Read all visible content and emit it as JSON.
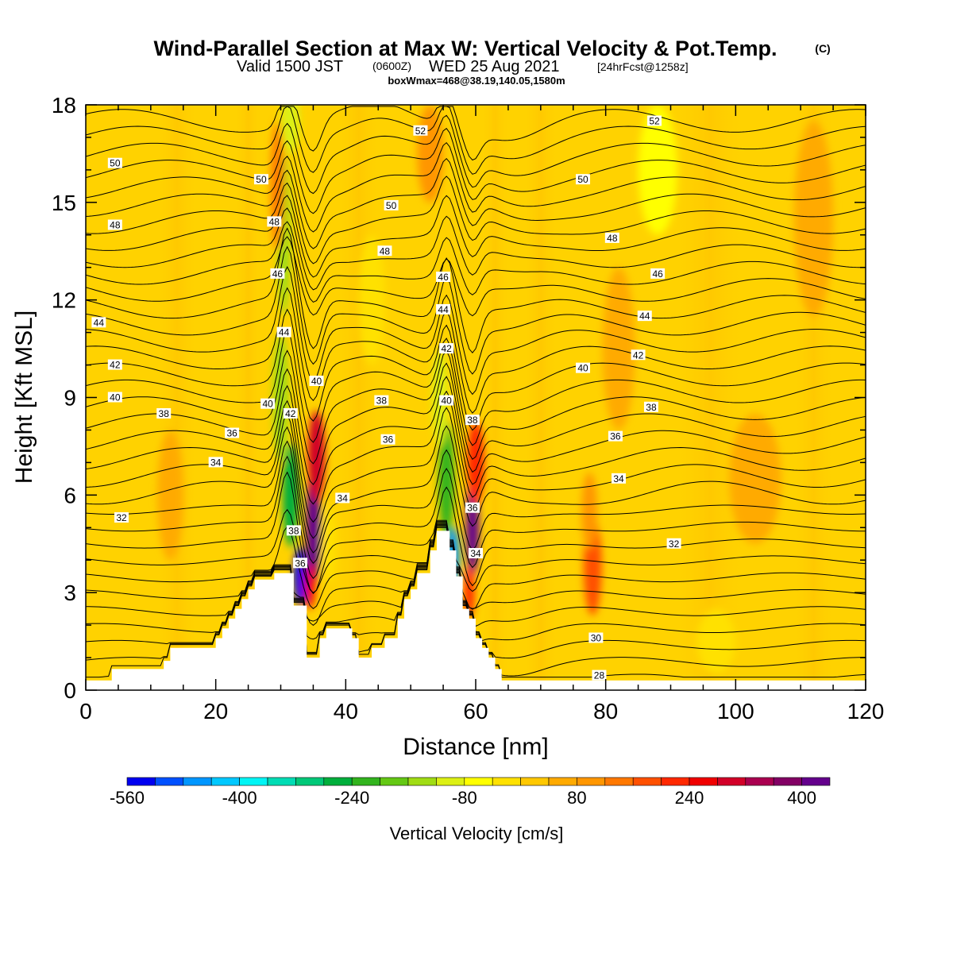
{
  "title": {
    "main": "Wind-Parallel Section at Max W: Vertical Velocity & Pot.Temp.",
    "copyright": "(C)",
    "valid_prefix": "Valid 1500 JST",
    "valid_zulu": "(0600Z)",
    "valid_suffix": "WED 25 Aug 2021",
    "forecast": "[24hrFcst@1258z]",
    "box": "boxWmax=468@38.19,140.05,1580m"
  },
  "colorbar": {
    "label": "Vertical Velocity [cm/s]",
    "tick_labels": [
      "-560",
      "-400",
      "-240",
      "-80",
      "80",
      "240",
      "400"
    ],
    "colors": [
      "#0000f0",
      "#0050ff",
      "#0096ff",
      "#00c8ff",
      "#00f5f5",
      "#00dcb4",
      "#00c878",
      "#00af3c",
      "#32b41e",
      "#64c814",
      "#a0dc14",
      "#dcf014",
      "#ffff00",
      "#ffe100",
      "#ffc800",
      "#ffaa00",
      "#ff9600",
      "#ff7800",
      "#ff5000",
      "#ff2800",
      "#f00000",
      "#d20028",
      "#aa0050",
      "#820064",
      "#64008c"
    ]
  },
  "chart_data": {
    "type": "heatmap",
    "xlabel": "Distance [nm]",
    "ylabel": "Height [Kft MSL]",
    "xlim": [
      0,
      120
    ],
    "ylim": [
      0,
      18
    ],
    "xticks": [
      0,
      20,
      40,
      60,
      80,
      100,
      120
    ],
    "yticks": [
      0,
      3,
      6,
      9,
      12,
      15,
      18
    ],
    "terrain_kft": [
      [
        0,
        0.3
      ],
      [
        4,
        0.3
      ],
      [
        4,
        0.65
      ],
      [
        12,
        0.65
      ],
      [
        12,
        0.9
      ],
      [
        13,
        0.9
      ],
      [
        13,
        1.3
      ],
      [
        20,
        1.3
      ],
      [
        20,
        1.6
      ],
      [
        21,
        1.6
      ],
      [
        21,
        1.9
      ],
      [
        22,
        1.9
      ],
      [
        22,
        2.2
      ],
      [
        23,
        2.2
      ],
      [
        23,
        2.5
      ],
      [
        24,
        2.5
      ],
      [
        24,
        2.8
      ],
      [
        25,
        2.8
      ],
      [
        25,
        3.1
      ],
      [
        26,
        3.1
      ],
      [
        26,
        3.4
      ],
      [
        29,
        3.4
      ],
      [
        29,
        3.6
      ],
      [
        32,
        3.6
      ],
      [
        32,
        2.6
      ],
      [
        34,
        2.6
      ],
      [
        34,
        1.0
      ],
      [
        36,
        1.0
      ],
      [
        36,
        1.6
      ],
      [
        37,
        1.6
      ],
      [
        37,
        1.9
      ],
      [
        41,
        1.9
      ],
      [
        41,
        1.6
      ],
      [
        42,
        1.6
      ],
      [
        42,
        1.0
      ],
      [
        44,
        1.0
      ],
      [
        44,
        1.3
      ],
      [
        46,
        1.3
      ],
      [
        46,
        1.6
      ],
      [
        48,
        1.6
      ],
      [
        48,
        2.2
      ],
      [
        49,
        2.2
      ],
      [
        49,
        2.8
      ],
      [
        50,
        2.8
      ],
      [
        50,
        3.1
      ],
      [
        51,
        3.1
      ],
      [
        51,
        3.6
      ],
      [
        53,
        3.6
      ],
      [
        53,
        4.3
      ],
      [
        54,
        4.3
      ],
      [
        54,
        4.9
      ],
      [
        56,
        4.9
      ],
      [
        56,
        4.3
      ],
      [
        57,
        4.3
      ],
      [
        57,
        3.5
      ],
      [
        58,
        3.5
      ],
      [
        58,
        2.5
      ],
      [
        59,
        2.5
      ],
      [
        59,
        2.2
      ],
      [
        60,
        2.2
      ],
      [
        60,
        1.6
      ],
      [
        61,
        1.6
      ],
      [
        61,
        1.3
      ],
      [
        62,
        1.3
      ],
      [
        62,
        1.0
      ],
      [
        63,
        1.0
      ],
      [
        63,
        0.65
      ],
      [
        64,
        0.65
      ],
      [
        64,
        0.3
      ],
      [
        120,
        0.3
      ]
    ],
    "vertical_velocity_cells": [
      {
        "x": 33,
        "y": 3.5,
        "sx": 1.0,
        "sy": 0.9,
        "w": -560
      },
      {
        "x": 31.5,
        "y": 6.0,
        "sx": 1.2,
        "sy": 1.6,
        "w": -280
      },
      {
        "x": 30,
        "y": 9.0,
        "sx": 1.2,
        "sy": 2.0,
        "w": -160
      },
      {
        "x": 30.5,
        "y": 14.0,
        "sx": 1.0,
        "sy": 2.5,
        "w": -160
      },
      {
        "x": 31.5,
        "y": 17.5,
        "sx": 1.4,
        "sy": 1.0,
        "w": -120
      },
      {
        "x": 35,
        "y": 5.0,
        "sx": 1.1,
        "sy": 1.8,
        "w": 400
      },
      {
        "x": 35.5,
        "y": 7.2,
        "sx": 1.3,
        "sy": 1.4,
        "w": 280
      },
      {
        "x": 34.5,
        "y": 3.2,
        "sx": 0.8,
        "sy": 0.7,
        "w": 240
      },
      {
        "x": 29.5,
        "y": 15.5,
        "sx": 1.0,
        "sy": 2.0,
        "w": 120
      },
      {
        "x": 37.5,
        "y": 4.5,
        "sx": 1.0,
        "sy": 1.2,
        "w": -40
      },
      {
        "x": 56.5,
        "y": 4.0,
        "sx": 1.0,
        "sy": 1.0,
        "w": -480
      },
      {
        "x": 55.5,
        "y": 6.5,
        "sx": 1.2,
        "sy": 1.8,
        "w": -240
      },
      {
        "x": 54.5,
        "y": 9.0,
        "sx": 1.2,
        "sy": 1.5,
        "w": -120
      },
      {
        "x": 59.5,
        "y": 5.0,
        "sx": 1.0,
        "sy": 1.5,
        "w": 400
      },
      {
        "x": 60,
        "y": 7.0,
        "sx": 1.3,
        "sy": 1.3,
        "w": 200
      },
      {
        "x": 59,
        "y": 3.0,
        "sx": 0.8,
        "sy": 0.8,
        "w": 200
      },
      {
        "x": 78,
        "y": 3.8,
        "sx": 1.4,
        "sy": 1.5,
        "w": 160
      },
      {
        "x": 77.5,
        "y": 5.5,
        "sx": 1.2,
        "sy": 1.2,
        "w": 100
      },
      {
        "x": 13,
        "y": 6.0,
        "sx": 2.0,
        "sy": 2.0,
        "w": 60
      },
      {
        "x": 53,
        "y": 16.5,
        "sx": 2.0,
        "sy": 1.5,
        "w": 80
      },
      {
        "x": 82,
        "y": 10.5,
        "sx": 2.5,
        "sy": 2.5,
        "w": 50
      },
      {
        "x": 112,
        "y": 14.5,
        "sx": 3.0,
        "sy": 3.0,
        "w": 50
      },
      {
        "x": 103,
        "y": 6.5,
        "sx": 4.0,
        "sy": 2.0,
        "w": 60
      },
      {
        "x": 44,
        "y": 12.0,
        "sx": 2.0,
        "sy": 2.0,
        "w": -40
      },
      {
        "x": 88,
        "y": 16.0,
        "sx": 3.0,
        "sy": 2.0,
        "w": -50
      },
      {
        "x": 97,
        "y": 1.5,
        "sx": 3.0,
        "sy": 1.0,
        "w": -40
      }
    ],
    "isentrope_labels": [
      {
        "text": "50",
        "x": 4.5,
        "y": 16.2
      },
      {
        "text": "48",
        "x": 4.5,
        "y": 14.3
      },
      {
        "text": "44",
        "x": 2.0,
        "y": 11.3
      },
      {
        "text": "42",
        "x": 4.5,
        "y": 10.0
      },
      {
        "text": "40",
        "x": 4.5,
        "y": 9.0
      },
      {
        "text": "38",
        "x": 12.0,
        "y": 8.5
      },
      {
        "text": "36",
        "x": 22.5,
        "y": 7.9
      },
      {
        "text": "34",
        "x": 20.0,
        "y": 7.0
      },
      {
        "text": "32",
        "x": 5.5,
        "y": 5.3
      },
      {
        "text": "50",
        "x": 27.0,
        "y": 15.7
      },
      {
        "text": "48",
        "x": 29.0,
        "y": 14.4
      },
      {
        "text": "46",
        "x": 29.5,
        "y": 12.8
      },
      {
        "text": "44",
        "x": 30.5,
        "y": 11.0
      },
      {
        "text": "40",
        "x": 28.0,
        "y": 8.8
      },
      {
        "text": "42",
        "x": 31.5,
        "y": 8.5
      },
      {
        "text": "40",
        "x": 35.5,
        "y": 9.5
      },
      {
        "text": "38",
        "x": 32.0,
        "y": 4.9
      },
      {
        "text": "36",
        "x": 33.0,
        "y": 3.9
      },
      {
        "text": "34",
        "x": 39.5,
        "y": 5.9
      },
      {
        "text": "52",
        "x": 51.5,
        "y": 17.2
      },
      {
        "text": "50",
        "x": 47.0,
        "y": 14.9
      },
      {
        "text": "48",
        "x": 46.0,
        "y": 13.5
      },
      {
        "text": "38",
        "x": 45.5,
        "y": 8.9
      },
      {
        "text": "36",
        "x": 46.5,
        "y": 7.7
      },
      {
        "text": "46",
        "x": 55.0,
        "y": 12.7
      },
      {
        "text": "44",
        "x": 55.0,
        "y": 11.7
      },
      {
        "text": "42",
        "x": 55.5,
        "y": 10.5
      },
      {
        "text": "40",
        "x": 55.5,
        "y": 8.9
      },
      {
        "text": "38",
        "x": 59.5,
        "y": 8.3
      },
      {
        "text": "36",
        "x": 59.5,
        "y": 5.6
      },
      {
        "text": "34",
        "x": 60.0,
        "y": 4.2
      },
      {
        "text": "52",
        "x": 87.5,
        "y": 17.5
      },
      {
        "text": "50",
        "x": 76.5,
        "y": 15.7
      },
      {
        "text": "48",
        "x": 81.0,
        "y": 13.9
      },
      {
        "text": "46",
        "x": 88.0,
        "y": 12.8
      },
      {
        "text": "44",
        "x": 86.0,
        "y": 11.5
      },
      {
        "text": "42",
        "x": 85.0,
        "y": 10.3
      },
      {
        "text": "40",
        "x": 76.5,
        "y": 9.9
      },
      {
        "text": "38",
        "x": 87.0,
        "y": 8.7
      },
      {
        "text": "36",
        "x": 81.5,
        "y": 7.8
      },
      {
        "text": "34",
        "x": 82.0,
        "y": 6.5
      },
      {
        "text": "32",
        "x": 90.5,
        "y": 4.5
      },
      {
        "text": "30",
        "x": 78.5,
        "y": 1.6
      },
      {
        "text": "28",
        "x": 79.0,
        "y": 0.45
      }
    ]
  }
}
